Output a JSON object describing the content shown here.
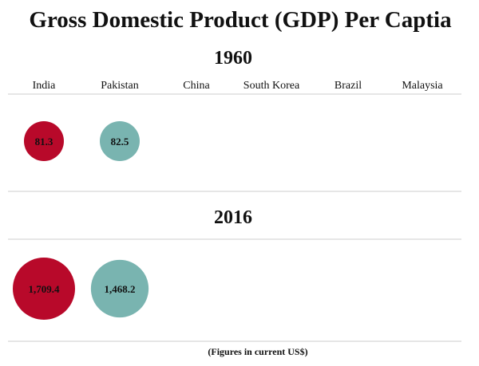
{
  "chart_data": {
    "type": "bubble",
    "title": "Gross Domestic Product (GDP) Per Captia",
    "footnote": "(Figures in current US$)",
    "categories": [
      "India",
      "Pakistan",
      "China",
      "South Korea",
      "Brazil",
      "Malaysia"
    ],
    "panels": [
      {
        "year": "1960",
        "values": [
          81.3,
          82.5,
          null,
          null,
          null,
          null
        ],
        "labels": [
          "81.3",
          "82.5",
          "",
          "",
          "",
          ""
        ]
      },
      {
        "year": "2016",
        "values": [
          1709.4,
          1468.2,
          null,
          null,
          null,
          null
        ],
        "labels": [
          "1,709.4",
          "1,468.2",
          "",
          "",
          "",
          ""
        ]
      }
    ],
    "colors": [
      "#b8092a",
      "#79b4b0",
      "#888888",
      "#888888",
      "#888888",
      "#888888"
    ],
    "grid": false,
    "legend": "none"
  }
}
